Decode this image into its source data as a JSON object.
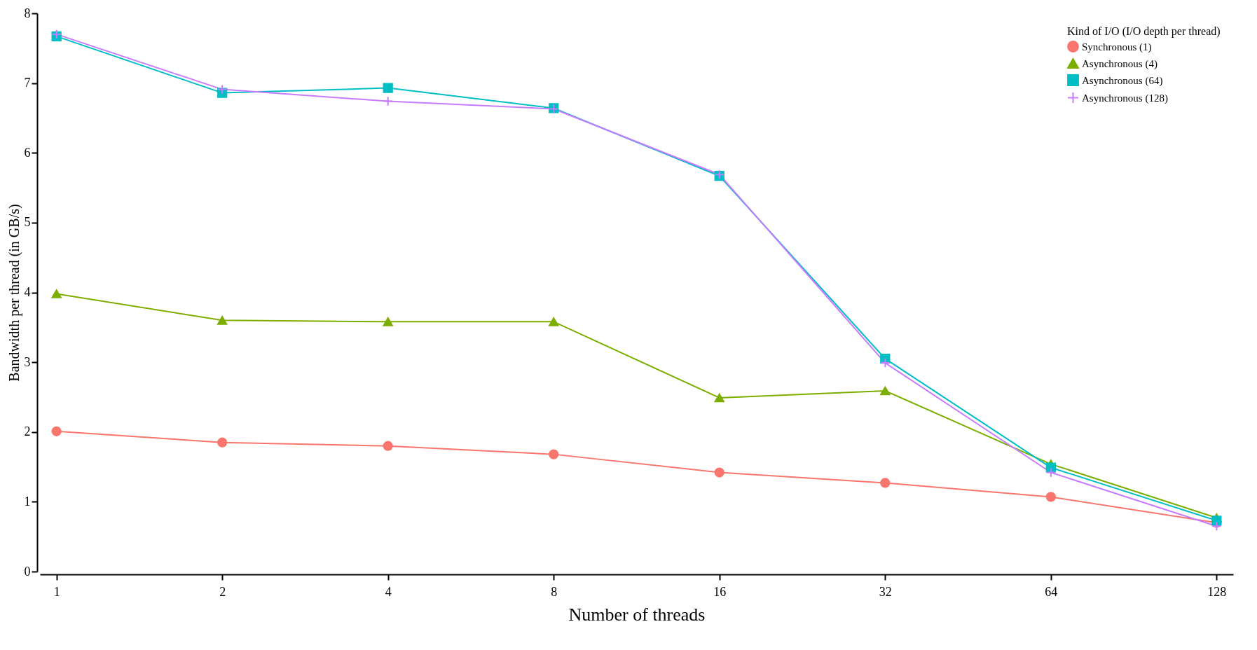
{
  "chart_data": {
    "type": "line",
    "xlabel": "Number of threads",
    "ylabel": "Bandwidth per thread (in GB/s)",
    "legend_title": "Kind of I/O (I/O depth per thread)",
    "categories": [
      "1",
      "2",
      "4",
      "8",
      "16",
      "32",
      "64",
      "128"
    ],
    "ylim": [
      0,
      8
    ],
    "yticks": [
      0,
      1,
      2,
      3,
      4,
      5,
      6,
      7,
      8
    ],
    "grid": false,
    "legend": "top right",
    "series": [
      {
        "name": "Synchronous (1)",
        "color": "#f8766d",
        "marker": "circle",
        "values": [
          2.01,
          1.85,
          1.8,
          1.68,
          1.42,
          1.27,
          1.07,
          0.7
        ]
      },
      {
        "name": "Asynchronous (4)",
        "color": "#7cae00",
        "marker": "triangle",
        "values": [
          3.98,
          3.6,
          3.58,
          3.58,
          2.49,
          2.59,
          1.54,
          0.77
        ]
      },
      {
        "name": "Asynchronous (64)",
        "color": "#00bfc4",
        "marker": "square",
        "values": [
          7.67,
          6.86,
          6.93,
          6.64,
          5.67,
          3.05,
          1.49,
          0.73
        ]
      },
      {
        "name": "Asynchronous (128)",
        "color": "#c77cff",
        "marker": "cross",
        "values": [
          7.7,
          6.91,
          6.74,
          6.63,
          5.69,
          2.99,
          1.42,
          0.65
        ]
      }
    ]
  }
}
